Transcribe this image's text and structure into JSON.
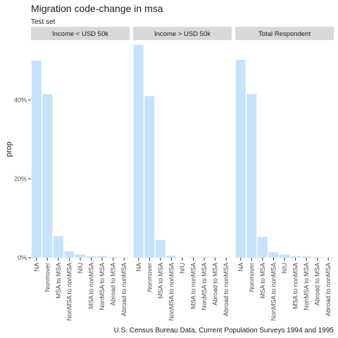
{
  "chart_data": {
    "type": "bar",
    "title": "Migration code-change in msa",
    "subtitle": "Test set",
    "caption": "U.S. Census Bureau Data, Current Population Surveys 1994 and 1995",
    "ylabel": "prop",
    "xlabel": "",
    "ylim": [
      0,
      0.55
    ],
    "y_ticks": [
      0,
      0.2,
      0.4
    ],
    "y_tick_labels": [
      "0%",
      "20%",
      "40%"
    ],
    "grid": false,
    "bar_color": "#c6e2ff",
    "strip_color": "#d9d9d9",
    "categories": [
      "NA",
      "Nonmover",
      "MSA to MSA",
      "NonMSA to nonMSA",
      "NIU",
      "MSA to nonMSA",
      "NonMSA to MSA",
      "Abroad to MSA",
      "Abroad to nonMSA"
    ],
    "facets": [
      {
        "name": "Income < USD 50k",
        "values": [
          0.5,
          0.415,
          0.055,
          0.016,
          0.008,
          0.004,
          0.004,
          0.002,
          0.001
        ]
      },
      {
        "name": "Income > USD 50k",
        "values": [
          0.54,
          0.41,
          0.045,
          0.005,
          0.0,
          0.002,
          0.002,
          0.002,
          0.0
        ]
      },
      {
        "name": "Total Respondent",
        "values": [
          0.502,
          0.415,
          0.053,
          0.014,
          0.008,
          0.004,
          0.004,
          0.002,
          0.001
        ]
      }
    ]
  }
}
